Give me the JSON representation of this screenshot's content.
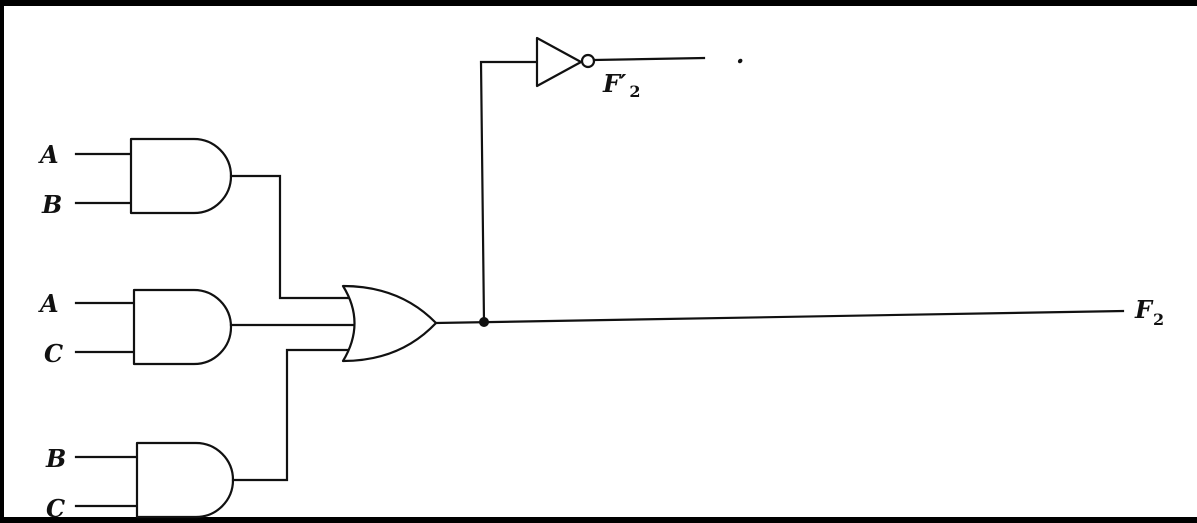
{
  "inputs": {
    "g1_in1": "A",
    "g1_in2": "B",
    "g2_in1": "A",
    "g2_in2": "C",
    "g3_in1": "B",
    "g3_in2": "C"
  },
  "outputs": {
    "f2_main": "F",
    "f2_sub": "2",
    "f2_complement_main": "F′",
    "f2_complement_sub": "2"
  },
  "stray_mark": "."
}
